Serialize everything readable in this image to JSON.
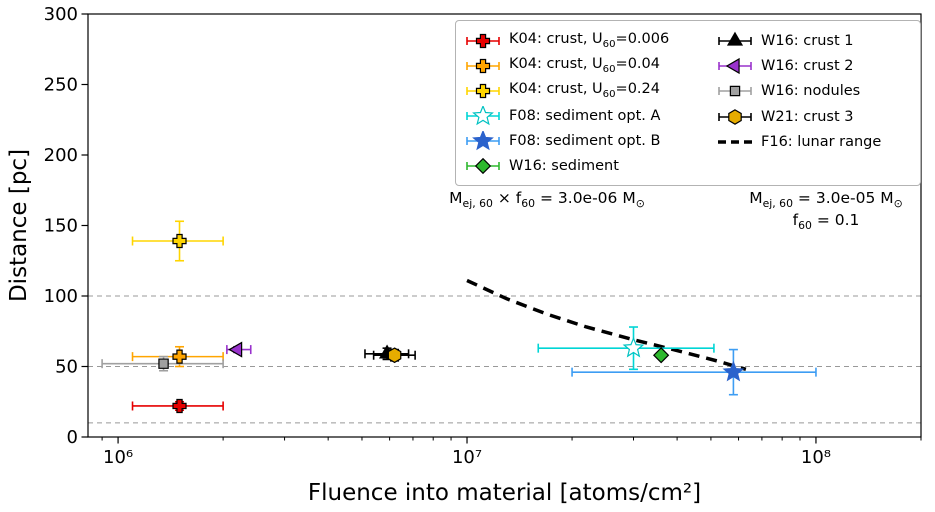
{
  "chart_data": {
    "type": "scatter",
    "title": "",
    "xlabel": "Fluence into material [atoms/cm²]",
    "ylabel": "Distance [pc]",
    "xscale": "log",
    "xlim": [
      820000.0,
      200000000.0
    ],
    "ylim": [
      0,
      300
    ],
    "xticks": [
      {
        "v": 1000000.0,
        "label": "10⁶"
      },
      {
        "v": 10000000.0,
        "label": "10⁷"
      },
      {
        "v": 100000000.0,
        "label": "10⁸"
      }
    ],
    "yticks": [
      0,
      50,
      100,
      150,
      200,
      250,
      300
    ],
    "gridlines_y": [
      10,
      50,
      100
    ],
    "grid_style": "dashed-gray",
    "series": [
      {
        "name": "k04_0006",
        "label": "K04: crust, U_{60}=0.006",
        "marker": "plus",
        "color": "#e60000",
        "edge": "#000000",
        "ecolor": "#e60000",
        "size": 13,
        "point": {
          "x": 1500000.0,
          "y": 22,
          "xerr": [
            1100000.0,
            2000000.0
          ],
          "yerr": 3
        }
      },
      {
        "name": "k04_004",
        "label": "K04: crust, U_{60}=0.04",
        "marker": "plus",
        "color": "#ffa500",
        "edge": "#000000",
        "ecolor": "#ffa500",
        "size": 13,
        "point": {
          "x": 1500000.0,
          "y": 57,
          "xerr": [
            1100000.0,
            2000000.0
          ],
          "yerr": 7
        }
      },
      {
        "name": "k04_024",
        "label": "K04: crust, U_{60}=0.24",
        "marker": "plus",
        "color": "#ffd500",
        "edge": "#000000",
        "ecolor": "#ffd500",
        "size": 13,
        "point": {
          "x": 1500000.0,
          "y": 139,
          "xerr": [
            1100000.0,
            2000000.0
          ],
          "yerr": 14
        }
      },
      {
        "name": "f08_a",
        "label": "F08: sediment opt. A",
        "marker": "star",
        "color": "#ffffff",
        "edge": "#00c2c2",
        "ecolor": "#00d5d5",
        "size": 17,
        "point": {
          "x": 30000000.0,
          "y": 63,
          "xerr": [
            16000000.0,
            51000000.0
          ],
          "yerr": 15
        }
      },
      {
        "name": "f08_b",
        "label": "F08: sediment opt. B",
        "marker": "star",
        "color": "#2b62cc",
        "edge": "#2b62cc",
        "ecolor": "#3d9df3",
        "size": 17,
        "point": {
          "x": 58000000.0,
          "y": 46,
          "xerr": [
            20000000.0,
            100000000.0
          ],
          "yerr": 16
        }
      },
      {
        "name": "w16_sed",
        "label": "W16: sediment",
        "marker": "diamond",
        "color": "#2eb82e",
        "edge": "#000000",
        "ecolor": "#2eb82e",
        "size": 14,
        "point": {
          "x": 36000000.0,
          "y": 58,
          "xerr": null,
          "yerr": null
        }
      },
      {
        "name": "w16_c1",
        "label": "W16: crust 1",
        "marker": "triangle-up",
        "color": "#000000",
        "edge": "#000000",
        "ecolor": "#000000",
        "size": 14,
        "point": {
          "x": 5900000.0,
          "y": 59,
          "xerr": [
            5100000.0,
            6800000.0
          ],
          "yerr": 4
        }
      },
      {
        "name": "w16_c2",
        "label": "W16: crust 2",
        "marker": "triangle-left",
        "color": "#9932cc",
        "edge": "#000000",
        "ecolor": "#9932cc",
        "size": 14,
        "point": {
          "x": 2200000.0,
          "y": 62,
          "xerr": [
            2050000.0,
            2400000.0
          ],
          "yerr": 2
        }
      },
      {
        "name": "w16_nod",
        "label": "W16: nodules",
        "marker": "square",
        "color": "#a0a0a0",
        "edge": "#000000",
        "ecolor": "#a0a0a0",
        "size": 11,
        "point": {
          "x": 1350000.0,
          "y": 52,
          "xerr": [
            900000.0,
            2000000.0
          ],
          "yerr": 5
        }
      },
      {
        "name": "w21_c3",
        "label": "W21: crust 3",
        "marker": "hexagon",
        "color": "#e6ac00",
        "edge": "#000000",
        "ecolor": "#000000",
        "size": 13,
        "point": {
          "x": 6200000.0,
          "y": 58,
          "xerr": [
            5400000.0,
            7100000.0
          ],
          "yerr": 4
        }
      }
    ],
    "line_series": {
      "name": "f16",
      "label": "F16: lunar range",
      "style": "dashed",
      "color": "#000000",
      "width": 3.5,
      "points": [
        [
          10000000.0,
          111
        ],
        [
          13000000.0,
          98
        ],
        [
          17000000.0,
          87
        ],
        [
          22000000.0,
          78
        ],
        [
          30000000.0,
          69
        ],
        [
          42000000.0,
          60
        ],
        [
          52000000.0,
          54
        ],
        [
          63000000.0,
          48
        ]
      ]
    }
  },
  "legend": {
    "columns": [
      [
        "k04_0006",
        "k04_004",
        "k04_024",
        "f08_a",
        "f08_b",
        "w16_sed"
      ],
      [
        "w16_c1",
        "w16_c2",
        "w16_nod",
        "w21_c3",
        "f16"
      ]
    ]
  },
  "annotations": {
    "left": "M_{ej, 60} × f_{60} = 3.0e-06 M_{⊙}",
    "right_line1": "M_{ej, 60} = 3.0e-05 M_{⊙}",
    "right_line2": "f_{60} = 0.1"
  }
}
